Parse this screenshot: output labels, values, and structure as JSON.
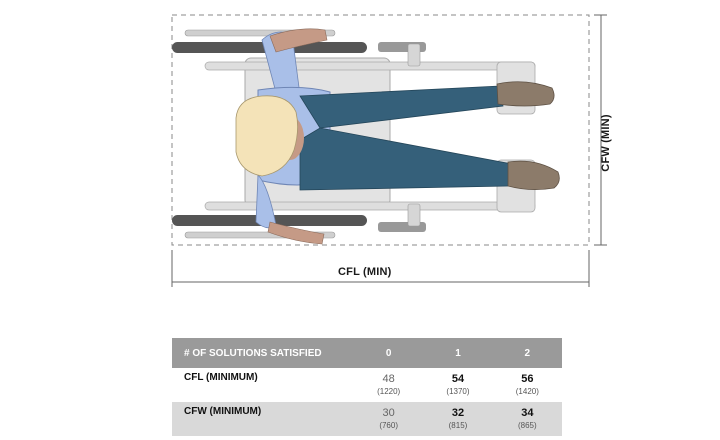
{
  "diagram": {
    "cfl_label": "CFL (MIN)",
    "cfw_label": "CFW (MIN)"
  },
  "table": {
    "header": {
      "label": "# OF SOLUTIONS SATISFIED",
      "columns": [
        "0",
        "1",
        "2"
      ]
    },
    "rows": [
      {
        "label": "CFL (MINIMUM)",
        "cells": [
          {
            "value": "48",
            "mm": "(1220)",
            "emphasis": false
          },
          {
            "value": "54",
            "mm": "(1370)",
            "emphasis": true
          },
          {
            "value": "56",
            "mm": "(1420)",
            "emphasis": true
          }
        ]
      },
      {
        "label": "CFW (MINIMUM)",
        "cells": [
          {
            "value": "30",
            "mm": "(760)",
            "emphasis": false
          },
          {
            "value": "32",
            "mm": "(815)",
            "emphasis": true
          },
          {
            "value": "34",
            "mm": "(865)",
            "emphasis": true
          }
        ]
      }
    ]
  },
  "colors": {
    "shirt": "#a9bfe8",
    "jeans": "#35607a",
    "hair": "#f4e3b8",
    "skin": "#c59a86",
    "shoe": "#8c7b6a",
    "wheel": "#555555",
    "frame": "#c9c9c9",
    "header_bg": "#9a9a9a",
    "shade_bg": "#d9d9d9"
  }
}
